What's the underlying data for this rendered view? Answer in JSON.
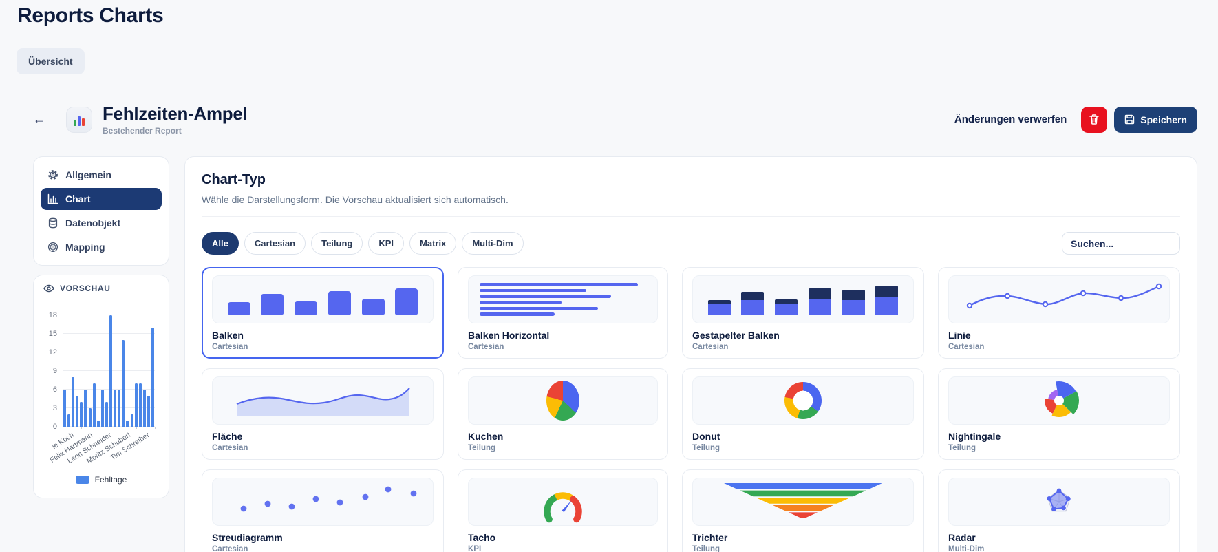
{
  "app": {
    "title": "Reports Charts"
  },
  "nav_tabs": {
    "overview_label": "Übersicht"
  },
  "report": {
    "title": "Fehlzeiten-Ampel",
    "subtitle": "Bestehender Report",
    "discard_label": "Änderungen verwerfen",
    "save_label": "Speichern"
  },
  "sidebar": {
    "items": [
      {
        "label": "Allgemein",
        "icon": "gear",
        "active": false
      },
      {
        "label": "Chart",
        "icon": "bar-chart",
        "active": true
      },
      {
        "label": "Datenobjekt",
        "icon": "database",
        "active": false
      },
      {
        "label": "Mapping",
        "icon": "target",
        "active": false
      }
    ]
  },
  "preview": {
    "header_label": "VORSCHAU",
    "legend_label": "Fehltage",
    "chart_data": {
      "type": "bar",
      "values": [
        6,
        2,
        8,
        5,
        4,
        6,
        3,
        7,
        1,
        6,
        4,
        18,
        6,
        6,
        14,
        1,
        2,
        7,
        7,
        6,
        5,
        16
      ],
      "x_tick_labels": [
        "ie Koch",
        "Felix Hartmann",
        "Leon Schneider",
        "Moritz Schubert",
        "Tim Schreiber"
      ],
      "x_tick_positions": [
        9,
        29.5,
        50,
        70.5,
        91
      ],
      "y_ticks": [
        18,
        15,
        12,
        9,
        6,
        3,
        0
      ],
      "ylim": [
        0,
        18
      ],
      "bar_color": "#4a86e8",
      "series_name": "Fehltage"
    }
  },
  "main": {
    "title": "Chart-Typ",
    "subtitle": "Wähle die Darstellungsform. Die Vorschau aktualisiert sich automatisch.",
    "filters": [
      {
        "label": "Alle",
        "active": true
      },
      {
        "label": "Cartesian",
        "active": false
      },
      {
        "label": "Teilung",
        "active": false
      },
      {
        "label": "KPI",
        "active": false
      },
      {
        "label": "Matrix",
        "active": false
      },
      {
        "label": "Multi-Dim",
        "active": false
      }
    ],
    "search_placeholder": "Suchen...",
    "chart_types": [
      {
        "name": "Balken",
        "category": "Cartesian",
        "kind": "bar",
        "selected": true
      },
      {
        "name": "Balken Horizontal",
        "category": "Cartesian",
        "kind": "hbar",
        "selected": false
      },
      {
        "name": "Gestapelter Balken",
        "category": "Cartesian",
        "kind": "stack",
        "selected": false
      },
      {
        "name": "Linie",
        "category": "Cartesian",
        "kind": "line",
        "selected": false
      },
      {
        "name": "Fläche",
        "category": "Cartesian",
        "kind": "area",
        "selected": false
      },
      {
        "name": "Kuchen",
        "category": "Teilung",
        "kind": "pie",
        "selected": false
      },
      {
        "name": "Donut",
        "category": "Teilung",
        "kind": "donut",
        "selected": false
      },
      {
        "name": "Nightingale",
        "category": "Teilung",
        "kind": "rose",
        "selected": false
      },
      {
        "name": "Streudiagramm",
        "category": "Cartesian",
        "kind": "scatter",
        "selected": false
      },
      {
        "name": "Tacho",
        "category": "KPI",
        "kind": "gauge",
        "selected": false
      },
      {
        "name": "Trichter",
        "category": "Teilung",
        "kind": "funnel",
        "selected": false
      },
      {
        "name": "Radar",
        "category": "Multi-Dim",
        "kind": "radar",
        "selected": false
      }
    ]
  },
  "colors": {
    "indigo": "#5566ef",
    "navy_dark": "#1e2f5e",
    "preview_blue": "#4a86e8",
    "red": "#ea4335",
    "green": "#34a853",
    "yellow": "#fbbc05",
    "orange": "#f58220",
    "purple": "#a166f2",
    "danger": "#e8111f",
    "save_navy": "#1d4076",
    "accent": "#1d3a70"
  }
}
